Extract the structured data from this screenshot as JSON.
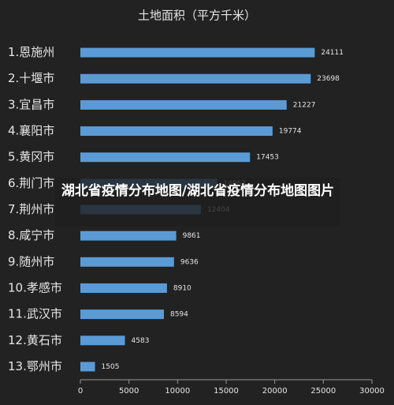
{
  "chart_data": {
    "type": "bar",
    "orientation": "horizontal",
    "title": "土地面积（平方千米）",
    "categories": [
      "1.恩施州",
      "2.十堰市",
      "3.宜昌市",
      "4.襄阳市",
      "5.黄冈市",
      "6.荆门市",
      "7.荆州市",
      "8.咸宁市",
      "9.随州市",
      "10.孝感市",
      "11.武汉市",
      "12.黄石市",
      "13.鄂州市"
    ],
    "values": [
      24111,
      23698,
      21227,
      19774,
      17453,
      14067,
      12404,
      9861,
      9636,
      8910,
      8594,
      4583,
      1505
    ],
    "color": "#5b9bd5",
    "xlim": [
      0,
      30000
    ],
    "xticks": [
      0,
      5000,
      10000,
      15000,
      20000,
      25000,
      30000
    ],
    "grid": false
  },
  "overlay": {
    "caption": "湖北省疫情分布地图/湖北省疫情分布地图图片"
  }
}
